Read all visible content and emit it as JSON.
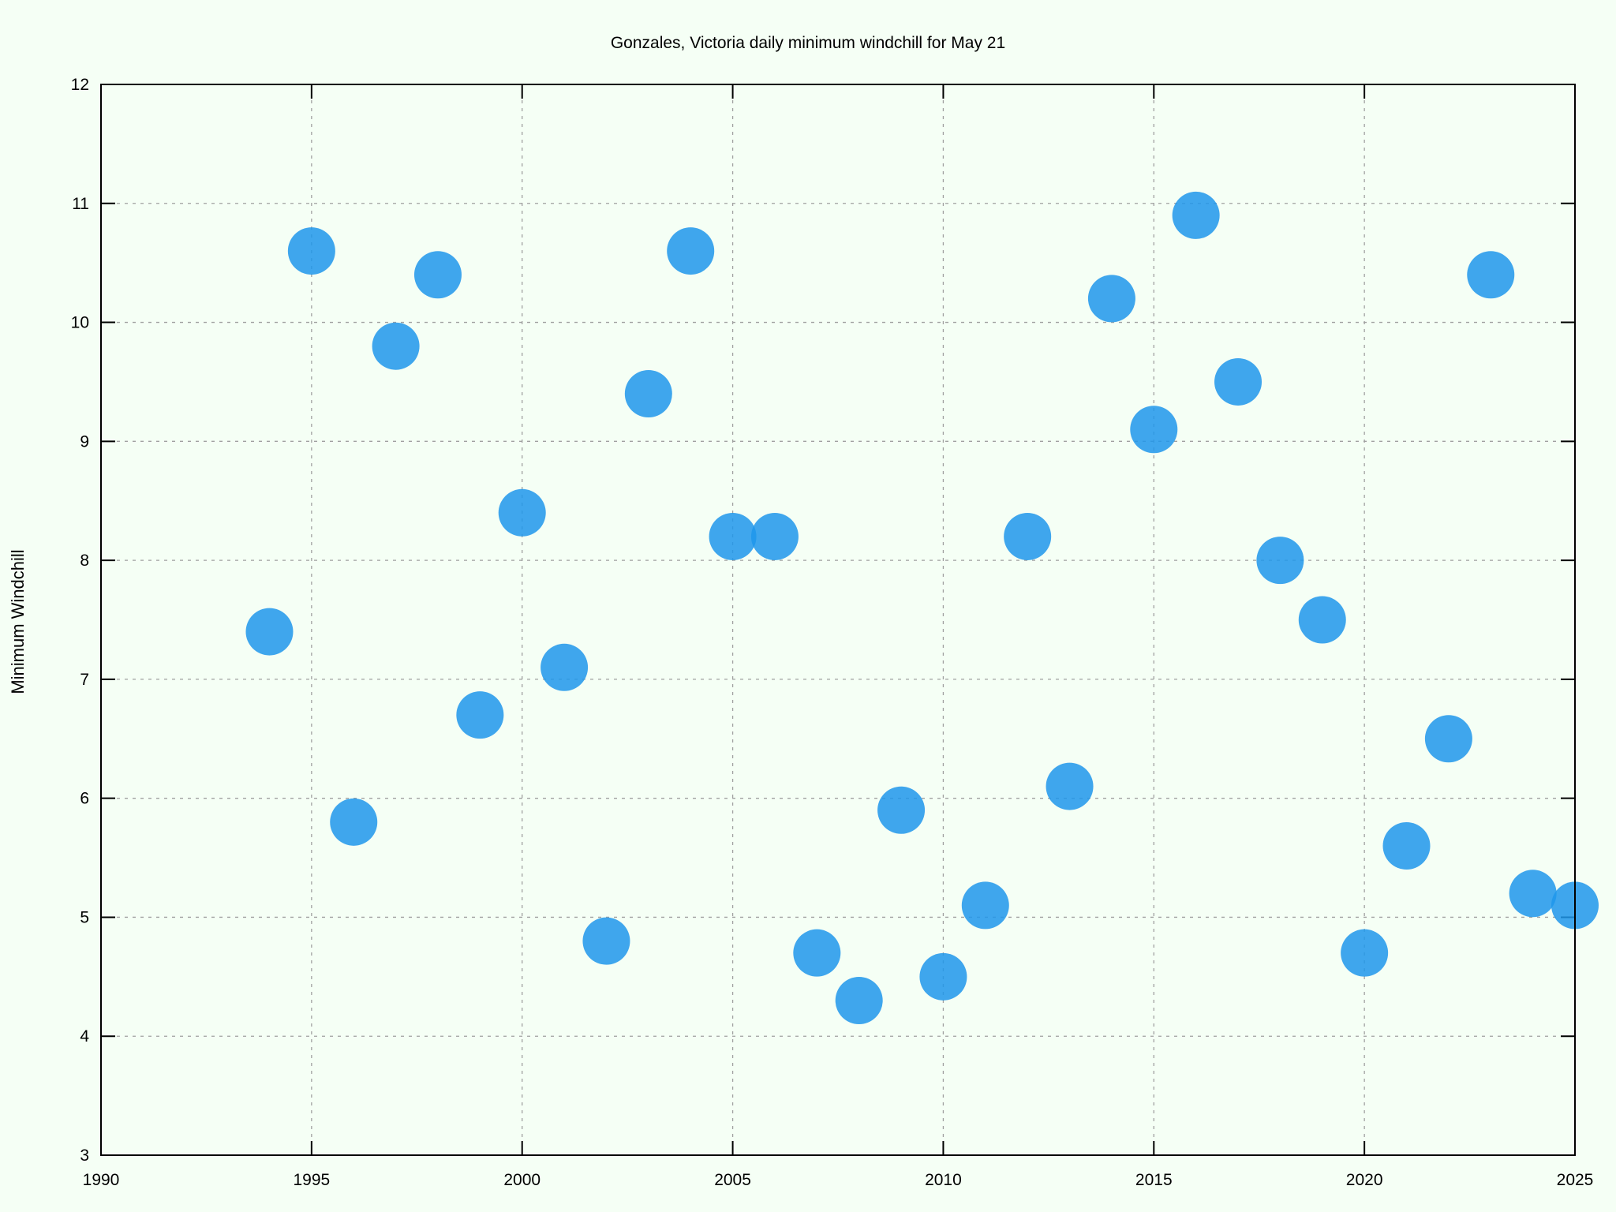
{
  "chart_data": {
    "type": "scatter",
    "title": "Gonzales, Victoria daily minimum windchill for May 21",
    "xlabel": "",
    "ylabel": "Minimum Windchill",
    "xlim": [
      1990,
      2025
    ],
    "ylim": [
      3,
      12
    ],
    "x_ticks": [
      1990,
      1995,
      2000,
      2005,
      2010,
      2015,
      2020,
      2025
    ],
    "y_ticks": [
      3,
      4,
      5,
      6,
      7,
      8,
      9,
      10,
      11,
      12
    ],
    "grid": true,
    "point_color": "#1e96eb",
    "background_color": "#f5fff5",
    "series": [
      {
        "x": [
          1994,
          1995,
          1996,
          1997,
          1998,
          1999,
          2000,
          2001,
          2002,
          2003,
          2004,
          2005,
          2006,
          2007,
          2008,
          2009,
          2010,
          2011,
          2012,
          2013,
          2014,
          2015,
          2016,
          2017,
          2018,
          2019,
          2020,
          2021,
          2022,
          2023,
          2024,
          2025
        ],
        "y": [
          7.4,
          10.6,
          5.8,
          9.8,
          10.4,
          6.7,
          8.4,
          7.1,
          4.8,
          9.4,
          10.6,
          8.2,
          8.2,
          4.7,
          4.3,
          5.9,
          4.5,
          5.1,
          8.2,
          6.1,
          10.2,
          9.1,
          10.9,
          9.5,
          8.0,
          7.5,
          4.7,
          5.6,
          6.5,
          10.4,
          5.2,
          5.1
        ]
      }
    ]
  }
}
